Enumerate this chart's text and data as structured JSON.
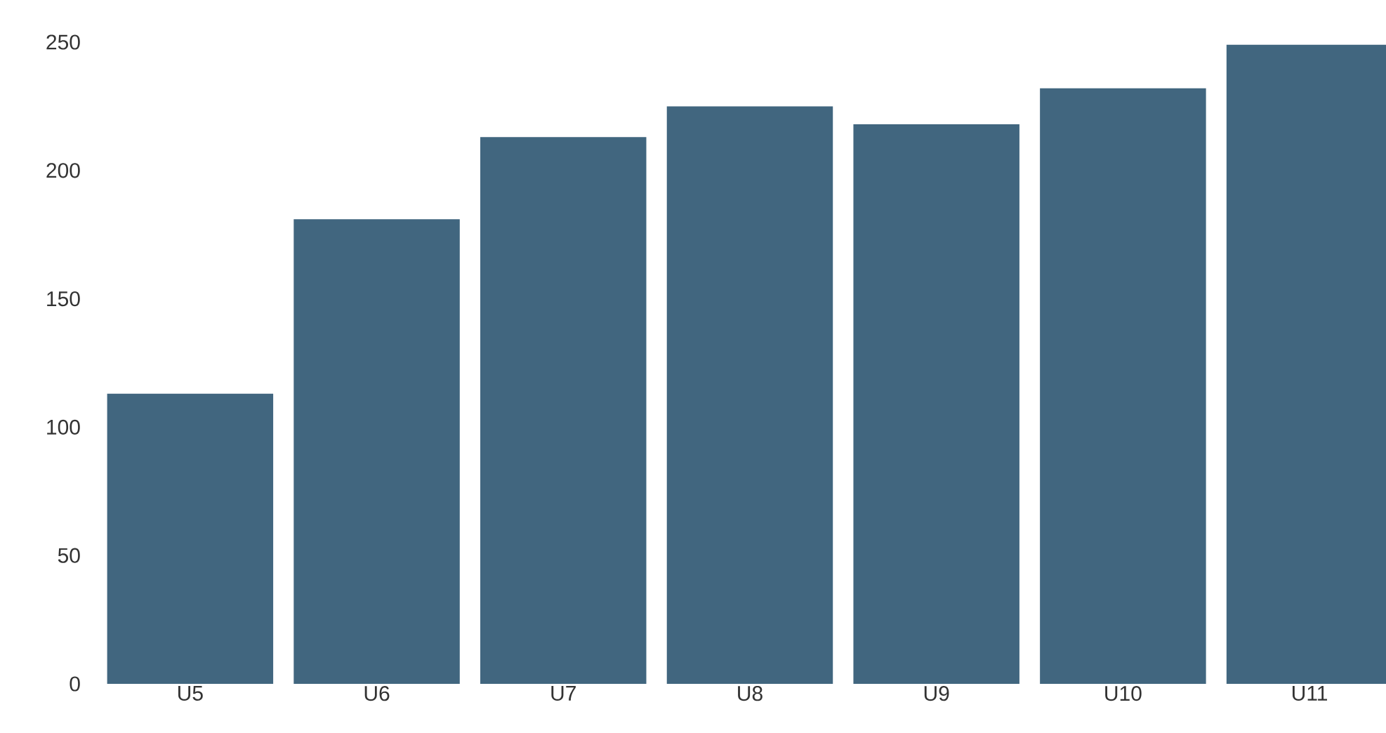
{
  "chart_data": {
    "type": "bar",
    "categories": [
      "U5",
      "U6",
      "U7",
      "U8",
      "U9",
      "U10",
      "U11"
    ],
    "values": [
      113,
      181,
      213,
      225,
      218,
      232,
      249
    ],
    "color": "#41667f",
    "ylim": [
      0,
      250
    ],
    "yticks": [
      0,
      50,
      100,
      150,
      200,
      250
    ],
    "grid": false
  }
}
